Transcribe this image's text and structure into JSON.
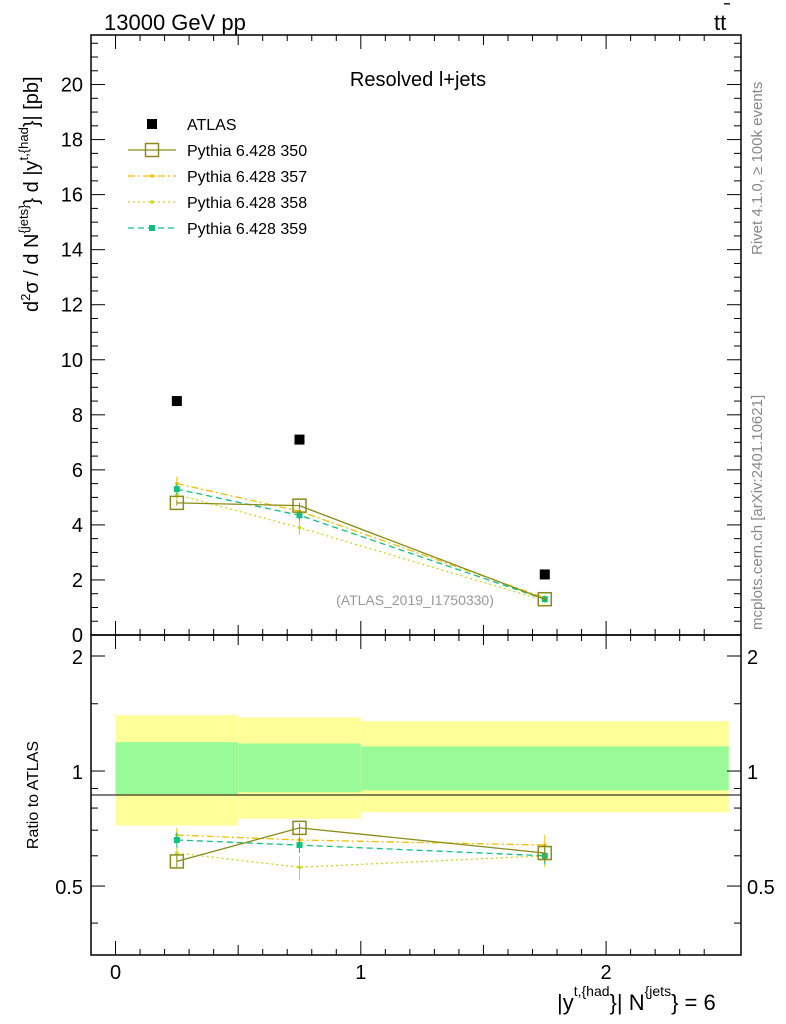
{
  "header": {
    "left": "13000 GeV pp",
    "right_main": "tt",
    "right_bar": "̄"
  },
  "side_labels": {
    "rivet": "Rivet 4.1.0, ≥ 100k events",
    "mcplots": "mcplots.cern.ch [arXiv:2401.10621]"
  },
  "colors": {
    "atlas": "#000000",
    "p350": "#8b8b1a",
    "p357": "#f0c000",
    "p358": "#c8d820",
    "p359": "#10c080",
    "band_inner": "#98fb98",
    "band_outer": "#ffff99"
  },
  "chart_data": [
    {
      "type": "scatter",
      "panel": "main",
      "title": "Resolved l+jets",
      "watermark": "(ATLAS_2019_I1750330)",
      "ylabel": {
        "a": "d",
        "a_sup": "2",
        "b": "σ / d N",
        "b_sup": "{jets}",
        "c": "} d |y",
        "c_sup": "t,{had",
        "d": "}| [pb]"
      },
      "xlim": [
        -0.1,
        2.55
      ],
      "ylim": [
        0,
        21.8
      ],
      "yticks": [
        0,
        2,
        4,
        6,
        8,
        10,
        12,
        14,
        16,
        18,
        20
      ],
      "ytick_labels": [
        "0",
        "2",
        "4",
        "6",
        "8",
        "10",
        "12",
        "14",
        "16",
        "18",
        "20"
      ],
      "legend_position": "top-left",
      "legend": [
        {
          "key": "atlas",
          "label": "ATLAS",
          "style": "marker"
        },
        {
          "key": "p350",
          "label": "Pythia 6.428 350",
          "style": "solid"
        },
        {
          "key": "p357",
          "label": "Pythia 6.428 357",
          "style": "dashdot"
        },
        {
          "key": "p358",
          "label": "Pythia 6.428 358",
          "style": "dotted"
        },
        {
          "key": "p359",
          "label": "Pythia 6.428 359",
          "style": "dashed"
        }
      ],
      "x": [
        0.25,
        0.75,
        1.75
      ],
      "x_edges": [
        0,
        0.5,
        1.0,
        2.5
      ],
      "series": [
        {
          "key": "atlas",
          "name": "ATLAS",
          "values": [
            8.5,
            7.1,
            2.2
          ]
        },
        {
          "key": "p350",
          "name": "Pythia 6.428 350",
          "values": [
            4.8,
            4.7,
            1.3
          ],
          "errors": [
            0.1,
            0.1,
            0.05
          ]
        },
        {
          "key": "p357",
          "name": "Pythia 6.428 357",
          "values": [
            5.5,
            4.5,
            1.35
          ],
          "errors": [
            0.25,
            0.25,
            0.1
          ]
        },
        {
          "key": "p358",
          "name": "Pythia 6.428 358",
          "values": [
            5.1,
            3.9,
            1.25
          ],
          "errors": [
            0.25,
            0.25,
            0.1
          ]
        },
        {
          "key": "p359",
          "name": "Pythia 6.428 359",
          "values": [
            5.3,
            4.35,
            1.3
          ],
          "errors": [
            0.2,
            0.2,
            0.08
          ]
        }
      ]
    },
    {
      "type": "line",
      "panel": "ratio",
      "ylabel": "Ratio to ATLAS",
      "xlabel": {
        "a": "|y",
        "a_sup": "t,{had",
        "b": "}| N",
        "b_sup": "{jets",
        "c": "} = 6"
      },
      "xlim": [
        -0.1,
        2.55
      ],
      "ylim": [
        0.33,
        2.27
      ],
      "yticks": [
        0.5,
        1,
        2
      ],
      "ytick_labels": [
        "0.5",
        "1",
        "2"
      ],
      "xticks": [
        0,
        1,
        2
      ],
      "xtick_labels": [
        "0",
        "1",
        "2"
      ],
      "bands": {
        "x_edges": [
          0,
          0.5,
          1.0,
          2.5
        ],
        "inner_low": [
          0.87,
          0.88,
          0.89
        ],
        "inner_high": [
          1.19,
          1.18,
          1.16
        ],
        "outer_low": [
          0.72,
          0.75,
          0.78
        ],
        "outer_high": [
          1.4,
          1.38,
          1.35
        ]
      },
      "x": [
        0.25,
        0.75,
        1.75
      ],
      "series": [
        {
          "key": "p350",
          "name": "Pythia 6.428 350",
          "values": [
            0.58,
            0.71,
            0.61
          ],
          "errors": [
            0.02,
            0.02,
            0.03
          ]
        },
        {
          "key": "p357",
          "name": "Pythia 6.428 357",
          "values": [
            0.68,
            0.66,
            0.64
          ],
          "errors": [
            0.03,
            0.04,
            0.04
          ]
        },
        {
          "key": "p358",
          "name": "Pythia 6.428 358",
          "values": [
            0.61,
            0.56,
            0.6
          ],
          "errors": [
            0.03,
            0.04,
            0.04
          ]
        },
        {
          "key": "p359",
          "name": "Pythia 6.428 359",
          "values": [
            0.66,
            0.64,
            0.6
          ],
          "errors": [
            0.03,
            0.03,
            0.03
          ]
        }
      ]
    }
  ]
}
